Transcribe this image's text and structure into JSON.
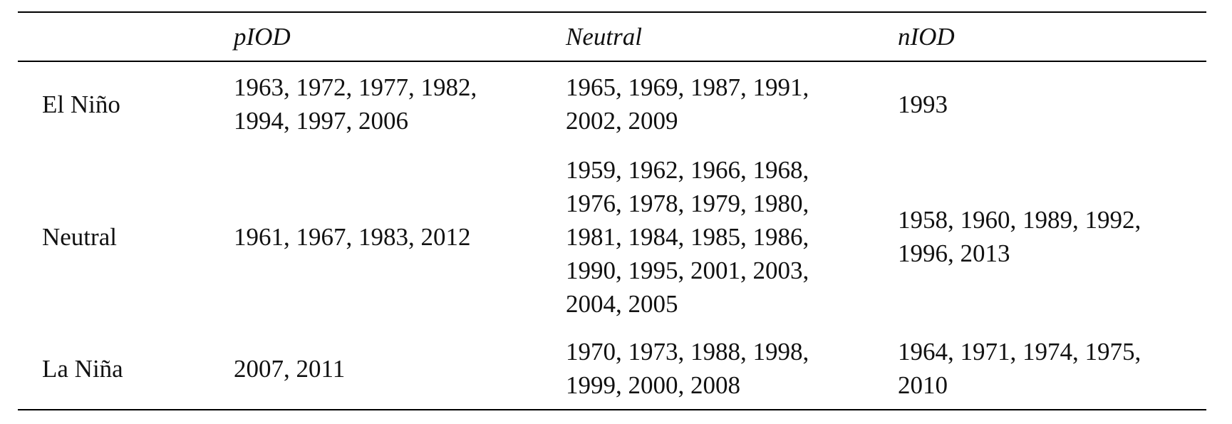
{
  "table": {
    "header": [
      "",
      "pIOD",
      "Neutral",
      "nIOD"
    ],
    "rows": [
      [
        "El Niño",
        "1963, 1972, 1977, 1982, 1994, 1997, 2006",
        "1965, 1969, 1987, 1991, 2002, 2009",
        "1993"
      ],
      [
        "Neutral",
        "1961, 1967, 1983, 2012",
        "1959, 1962, 1966, 1968, 1976, 1978, 1979, 1980, 1981, 1984, 1985, 1986, 1990, 1995, 2001, 2003, 2004, 2005",
        "1958, 1960, 1989, 1992, 1996, 2013"
      ],
      [
        "La Niña",
        "2007, 2011",
        "1970, 1973, 1988, 1998, 1999, 2000, 2008",
        "1964, 1971, 1974, 1975, 2010"
      ]
    ]
  }
}
